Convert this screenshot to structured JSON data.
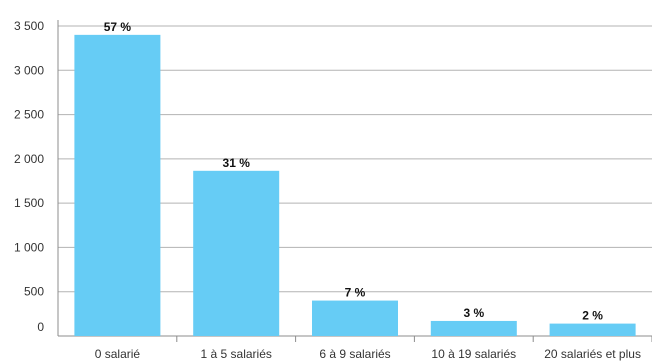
{
  "chart_data": {
    "type": "bar",
    "categories": [
      "0 salarié",
      "1 à 5 salariés",
      "6 à 9 salariés",
      "10 à 19 salariés",
      "20 salariés et plus"
    ],
    "values": [
      3400,
      1865,
      400,
      170,
      140
    ],
    "data_labels": [
      "57 %",
      "31 %",
      "7 %",
      "3 %",
      "2 %"
    ],
    "y_ticks": [
      0,
      500,
      1000,
      1500,
      2000,
      2500,
      3000,
      3500
    ],
    "y_tick_labels": [
      "0",
      "500",
      "1 000",
      "1 500",
      "2 000",
      "2 500",
      "3 000",
      "3 500"
    ],
    "ylim": [
      0,
      3500
    ],
    "grid": true,
    "legend": "none",
    "bar_color": "#66ccf5"
  }
}
